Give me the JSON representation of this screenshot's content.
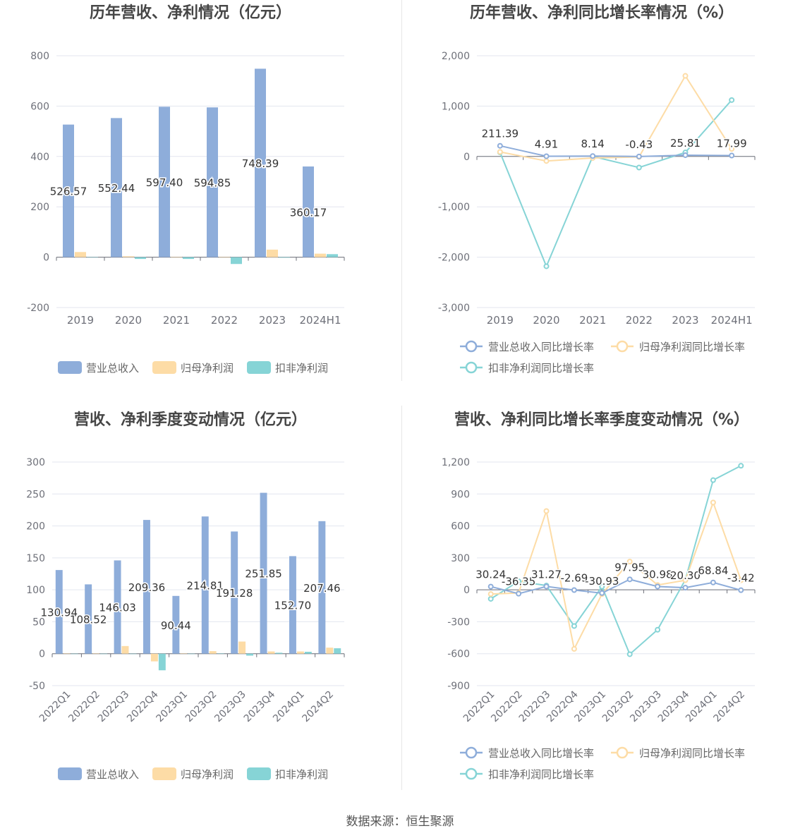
{
  "source_text": "数据来源：恒生聚源",
  "colors": {
    "revenue": "#8eadda",
    "net_profit": "#fddca6",
    "deducted_profit": "#86d4d6",
    "grid": "#e3e6ef",
    "axis_text": "#6e7079",
    "title": "#464646"
  },
  "chart_data": [
    {
      "type": "bar",
      "title": "历年营收、净利情况（亿元）",
      "categories": [
        "2019",
        "2020",
        "2021",
        "2022",
        "2023",
        "2024H1"
      ],
      "ylim": [
        -200,
        800
      ],
      "yticks": [
        "-200",
        "0",
        "200",
        "400",
        "600",
        "800"
      ],
      "ytick_values": [
        -200,
        0,
        200,
        400,
        600,
        800
      ],
      "grid": true,
      "legend_position": "bottom",
      "series": [
        {
          "name": "营业总收入",
          "values": [
            526.57,
            552.44,
            597.4,
            594.85,
            748.39,
            360.17
          ],
          "labels": [
            "526.57",
            "552.44",
            "597.40",
            "594.85",
            "748.39",
            "360.17"
          ]
        },
        {
          "name": "归母净利润",
          "values": [
            20.5,
            3.5,
            1.5,
            1.5,
            30,
            14
          ],
          "labels": []
        },
        {
          "name": "扣非净利润",
          "values": [
            0,
            -7,
            -7,
            -27,
            -2,
            12
          ],
          "labels": []
        }
      ]
    },
    {
      "type": "line",
      "title": "历年营收、净利同比增长率情况（%）",
      "categories": [
        "2019",
        "2020",
        "2021",
        "2022",
        "2023",
        "2024H1"
      ],
      "ylim": [
        -3000,
        2000
      ],
      "yticks": [
        "-3,000",
        "-2,000",
        "-1,000",
        "0",
        "1,000",
        "2,000"
      ],
      "ytick_values": [
        -3000,
        -2000,
        -1000,
        0,
        1000,
        2000
      ],
      "grid": true,
      "legend_position": "bottom",
      "series": [
        {
          "name": "营业总收入同比增长率",
          "values": [
            211.39,
            4.91,
            8.14,
            -0.43,
            25.81,
            17.99
          ],
          "labels": [
            "211.39",
            "4.91",
            "8.14",
            "-0.43",
            "25.81",
            "17.99"
          ]
        },
        {
          "name": "归母净利润同比增长率",
          "values": [
            90,
            -90,
            -30,
            -10,
            1600,
            150
          ],
          "labels": []
        },
        {
          "name": "扣非净利润同比增长率",
          "values": [
            80,
            -2180,
            0,
            -220,
            80,
            1120
          ],
          "labels": []
        }
      ]
    },
    {
      "type": "bar",
      "title": "营收、净利季度变动情况（亿元）",
      "categories": [
        "2022Q1",
        "2022Q2",
        "2022Q3",
        "2022Q4",
        "2023Q1",
        "2023Q2",
        "2023Q3",
        "2023Q4",
        "2024Q1",
        "2024Q2"
      ],
      "ylim": [
        -50,
        300
      ],
      "yticks": [
        "-50",
        "0",
        "50",
        "100",
        "150",
        "200",
        "250",
        "300"
      ],
      "ytick_values": [
        -50,
        0,
        50,
        100,
        150,
        200,
        250,
        300
      ],
      "grid": true,
      "legend_position": "bottom",
      "series": [
        {
          "name": "营业总收入",
          "values": [
            130.94,
            108.52,
            146.03,
            209.36,
            90.44,
            214.81,
            191.28,
            251.85,
            152.7,
            207.46
          ],
          "labels": [
            "130.94",
            "108.52",
            "146.03",
            "209.36",
            "90.44",
            "214.81",
            "191.28",
            "251.85",
            "152.70",
            "207.46"
          ]
        },
        {
          "name": "归母净利润",
          "values": [
            0.5,
            0.5,
            12,
            -12,
            0.5,
            4,
            19,
            3.5,
            3.5,
            9.5
          ],
          "labels": []
        },
        {
          "name": "扣非净利润",
          "values": [
            0,
            0,
            0,
            -26,
            0,
            0.5,
            -3,
            1.5,
            3,
            8.5
          ],
          "labels": []
        }
      ]
    },
    {
      "type": "line",
      "title": "营收、净利同比增长率季度变动情况（%）",
      "categories": [
        "2022Q1",
        "2022Q2",
        "2022Q3",
        "2022Q4",
        "2023Q1",
        "2023Q2",
        "2023Q3",
        "2023Q4",
        "2024Q1",
        "2024Q2"
      ],
      "ylim": [
        -900,
        1200
      ],
      "yticks": [
        "-900",
        "-600",
        "-300",
        "0",
        "300",
        "600",
        "900",
        "1,200"
      ],
      "ytick_values": [
        -900,
        -600,
        -300,
        0,
        300,
        600,
        900,
        1200
      ],
      "grid": true,
      "legend_position": "bottom",
      "series": [
        {
          "name": "营业总收入同比增长率",
          "values": [
            30.24,
            -36.35,
            31.27,
            -2.69,
            -30.93,
            97.95,
            30.98,
            20.3,
            68.84,
            -3.42
          ],
          "labels": [
            "30.24",
            "-36.35",
            "31.27",
            "-2.69",
            "-30.93",
            "97.95",
            "30.98",
            "20.30",
            "68.84",
            "-3.42"
          ]
        },
        {
          "name": "归母净利润同比增长率",
          "values": [
            -40,
            -30,
            740,
            -555,
            -40,
            265,
            45,
            90,
            820,
            90
          ],
          "labels": []
        },
        {
          "name": "扣非净利润同比增长率",
          "values": [
            -85,
            80,
            40,
            -340,
            30,
            -605,
            -375,
            95,
            1030,
            1165
          ],
          "labels": []
        }
      ]
    }
  ]
}
